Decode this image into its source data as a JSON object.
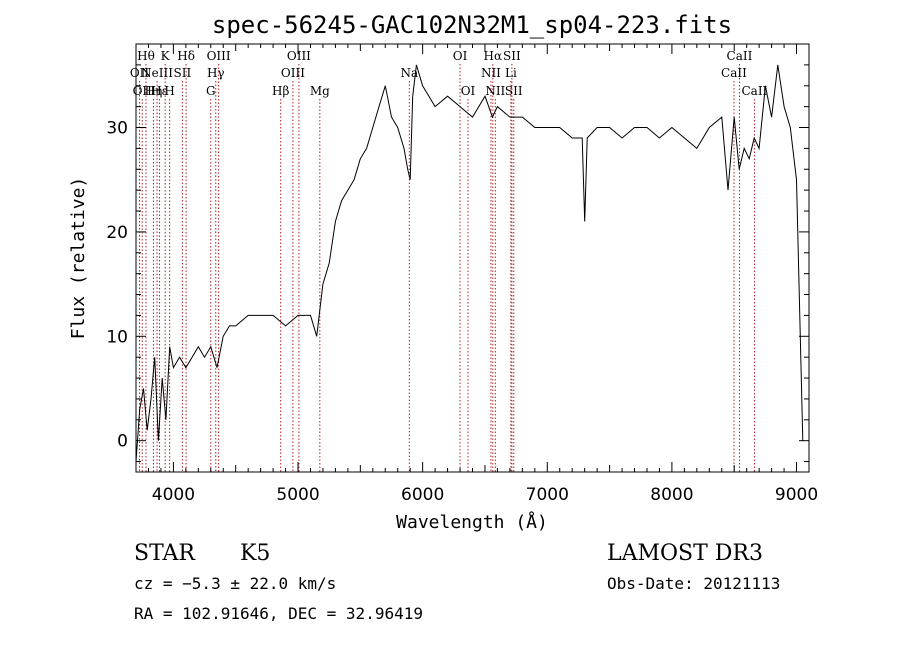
{
  "chart_data": {
    "type": "line",
    "title": "spec-56245-GAC102N32M1_sp04-223.fits",
    "xlabel": "Wavelength (Å)",
    "ylabel": "Flux (relative)",
    "xlim": [
      3700,
      9100
    ],
    "ylim": [
      -3,
      38
    ],
    "x_ticks": [
      4000,
      5000,
      6000,
      7000,
      8000,
      9000
    ],
    "y_ticks": [
      0,
      10,
      20,
      30
    ],
    "x_tick_labels": [
      "4000",
      "5000",
      "6000",
      "7000",
      "8000",
      "9000"
    ],
    "y_tick_labels": [
      "0",
      "10",
      "20",
      "30"
    ],
    "line_color": "#000000",
    "marker_color": "#b22222",
    "series": [
      {
        "x": [
          3700,
          3730,
          3760,
          3790,
          3820,
          3850,
          3880,
          3910,
          3940,
          3970,
          4000,
          4050,
          4100,
          4150,
          4200,
          4250,
          4300,
          4350,
          4400,
          4450,
          4500,
          4600,
          4700,
          4800,
          4900,
          5000,
          5100,
          5150,
          5200,
          5250,
          5300,
          5350,
          5400,
          5450,
          5500,
          5550,
          5600,
          5650,
          5700,
          5750,
          5800,
          5850,
          5880,
          5900,
          5920,
          5950,
          6000,
          6100,
          6200,
          6300,
          6400,
          6500,
          6560,
          6600,
          6700,
          6800,
          6900,
          7000,
          7100,
          7200,
          7280,
          7300,
          7320,
          7400,
          7500,
          7600,
          7700,
          7800,
          7900,
          8000,
          8100,
          8200,
          8300,
          8400,
          8450,
          8500,
          8540,
          8580,
          8620,
          8660,
          8700,
          8750,
          8800,
          8850,
          8900,
          8950,
          9000,
          9050
        ],
        "y": [
          -2,
          3,
          5,
          1,
          4,
          8,
          0,
          6,
          2,
          9,
          7,
          8,
          7,
          8,
          9,
          8,
          9,
          7,
          10,
          11,
          11,
          12,
          12,
          12,
          11,
          12,
          12,
          10,
          15,
          17,
          21,
          23,
          24,
          25,
          27,
          28,
          30,
          32,
          34,
          31,
          30,
          28,
          26,
          25,
          33,
          36,
          34,
          32,
          33,
          32,
          31,
          33,
          31,
          32,
          31,
          31,
          30,
          30,
          30,
          29,
          29,
          21,
          29,
          30,
          30,
          29,
          30,
          30,
          29,
          30,
          29,
          28,
          30,
          31,
          24,
          31,
          26,
          28,
          27,
          29,
          28,
          34,
          31,
          36,
          32,
          30,
          25,
          0
        ]
      }
    ],
    "lines": [
      {
        "x": 3728,
        "label": "OII",
        "row": 2
      },
      {
        "x": 3750,
        "label": "OII",
        "row": 3
      },
      {
        "x": 3780,
        "label": "Hθ",
        "row": 1
      },
      {
        "x": 3840,
        "label": "Hη",
        "row": 3
      },
      {
        "x": 3869,
        "label": "NeIII",
        "row": 2
      },
      {
        "x": 3889,
        "label": "Hε",
        "row": 3
      },
      {
        "x": 3934,
        "label": "K",
        "row": 1
      },
      {
        "x": 3970,
        "label": "H",
        "row": 3
      },
      {
        "x": 4072,
        "label": "SII",
        "row": 2
      },
      {
        "x": 4102,
        "label": "Hδ",
        "row": 1
      },
      {
        "x": 4300,
        "label": "G",
        "row": 3
      },
      {
        "x": 4340,
        "label": "Hγ",
        "row": 2
      },
      {
        "x": 4363,
        "label": "OIII",
        "row": 1
      },
      {
        "x": 4861,
        "label": "Hβ",
        "row": 3
      },
      {
        "x": 4959,
        "label": "OIII",
        "row": 2
      },
      {
        "x": 5007,
        "label": "OIII",
        "row": 1
      },
      {
        "x": 5175,
        "label": "Mg",
        "row": 3
      },
      {
        "x": 5893,
        "label": "Na",
        "row": 2
      },
      {
        "x": 6300,
        "label": "OI",
        "row": 1
      },
      {
        "x": 6364,
        "label": "OI",
        "row": 3
      },
      {
        "x": 6548,
        "label": "NII",
        "row": 2
      },
      {
        "x": 6563,
        "label": "Hα",
        "row": 1
      },
      {
        "x": 6583,
        "label": "NII",
        "row": 3
      },
      {
        "x": 6708,
        "label": "Li",
        "row": 2
      },
      {
        "x": 6716,
        "label": "SII",
        "row": 1
      },
      {
        "x": 6731,
        "label": "SII",
        "row": 3
      },
      {
        "x": 8498,
        "label": "CaII",
        "row": 2
      },
      {
        "x": 8542,
        "label": "CaII",
        "row": 1
      },
      {
        "x": 8662,
        "label": "CaII",
        "row": 3
      }
    ]
  },
  "info": {
    "class": "STAR",
    "subclass": "K5",
    "survey": "LAMOST DR3",
    "cz": "cz = −5.3 ± 22.0 km/s",
    "obs_date": "Obs-Date: 20121113",
    "coords": "RA = 102.91646, DEC =  32.96419"
  }
}
